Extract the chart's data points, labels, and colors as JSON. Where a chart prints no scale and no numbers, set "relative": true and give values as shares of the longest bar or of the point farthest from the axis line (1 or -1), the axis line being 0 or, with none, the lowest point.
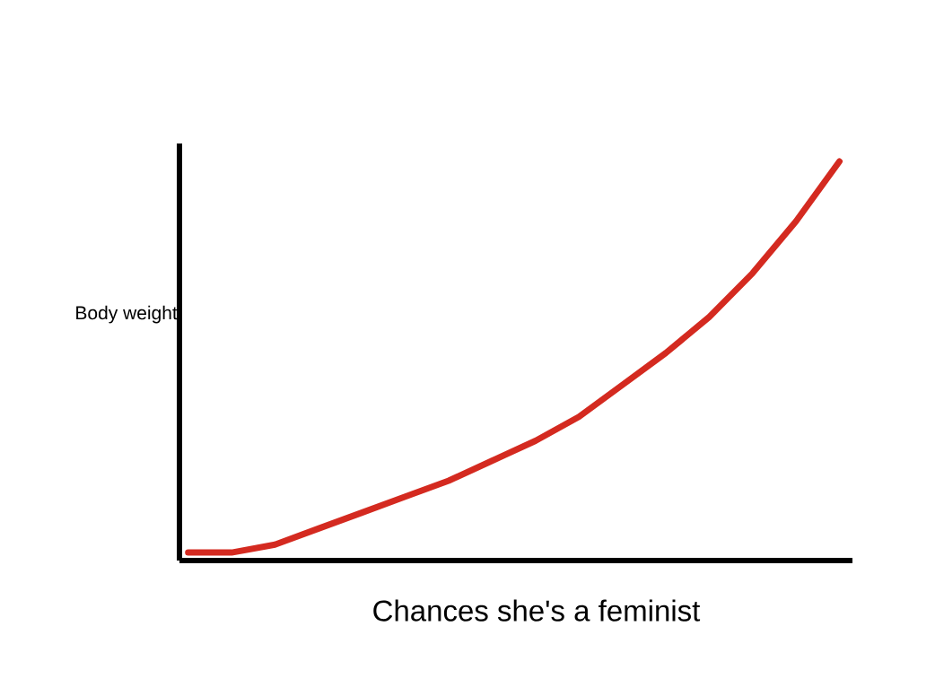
{
  "chart_data": {
    "type": "line",
    "relative": true,
    "xlabel": "Chances she's a feminist",
    "ylabel": "Body weight",
    "categories": [
      null,
      null,
      null,
      null,
      null,
      null,
      null,
      null,
      null,
      null,
      null,
      null,
      null,
      null,
      null,
      null
    ],
    "series": [
      {
        "color": "#d42a20",
        "values": [
          0.02,
          0.02,
          0.04,
          0.08,
          0.12,
          0.16,
          0.2,
          0.25,
          0.3,
          0.36,
          0.44,
          0.52,
          0.61,
          0.72,
          0.85,
          1.0
        ]
      }
    ]
  }
}
